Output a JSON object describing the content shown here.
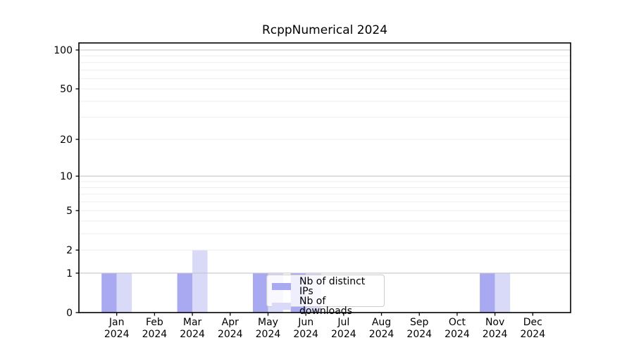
{
  "chart_data": {
    "type": "bar",
    "title": "RcppNumerical 2024",
    "x_categories": [
      "Jan",
      "Feb",
      "Mar",
      "Apr",
      "May",
      "Jun",
      "Jul",
      "Aug",
      "Sep",
      "Oct",
      "Nov",
      "Dec"
    ],
    "x_sub_label": "2024",
    "series": [
      {
        "name": "Nb of distinct IPs",
        "color": "#a9a9f2",
        "values": [
          1,
          0,
          1,
          0,
          1,
          1,
          0,
          0,
          0,
          0,
          1,
          0
        ]
      },
      {
        "name": "Nb of downloads",
        "color": "#d9d9f8",
        "values": [
          1,
          0,
          2,
          0,
          1,
          1,
          0,
          0,
          0,
          0,
          1,
          0
        ]
      }
    ],
    "y_axis": {
      "scale": "log1p",
      "tick_values": [
        0,
        1,
        2,
        5,
        10,
        20,
        50,
        100
      ],
      "gridlines_major": [
        1,
        10,
        100
      ],
      "gridlines_minor": [
        2,
        3,
        4,
        5,
        6,
        7,
        8,
        9,
        20,
        30,
        40,
        50,
        60,
        70,
        80,
        90
      ],
      "major_grid_color": "#c6c6c6",
      "minor_grid_color": "#ededed"
    },
    "grid": "horizontal",
    "legend_position": "lower center inside"
  }
}
